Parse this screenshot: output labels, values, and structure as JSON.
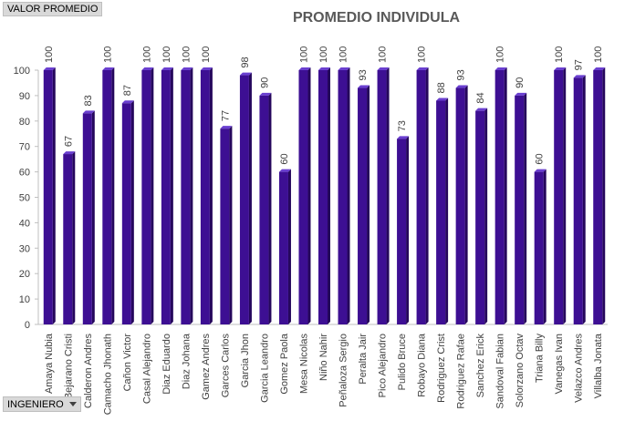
{
  "pivot": {
    "value_field": "VALOR PROMEDIO",
    "filter_field": "INGENIERO"
  },
  "colors": {
    "bar_front": "#3d0f93",
    "bar_side": "#25075c",
    "bar_top": "#6a3fd0",
    "axis": "#bfbfbf",
    "text": "#404040"
  },
  "chart_data": {
    "type": "bar",
    "title": "PROMEDIO INDIVIDULA",
    "xlabel": "",
    "ylabel": "",
    "ylim": [
      0,
      100
    ],
    "yticks": [
      0,
      10,
      20,
      30,
      40,
      50,
      60,
      70,
      80,
      90,
      100
    ],
    "grid": false,
    "legend": "none",
    "categories": [
      "Amaya Nubia",
      "Bejarano Cristi",
      "Calderon Andres",
      "Camacho Jhonath",
      "Cañon Victor",
      "Casal Alejandro",
      "Diaz Eduardo",
      "Diaz Johana",
      "Gamez Andres",
      "Garces Carlos",
      "Garcia Jhon",
      "Garcia Leandro",
      "Gomez Paola",
      "Mesa Nicolas",
      "Niño Nahir",
      "Peñaloza Sergio",
      "Peralta Jair",
      "Pico Alejandro",
      "Pulido Bruce",
      "Robayo Diana",
      "Rodriguez Crist",
      "Rodriguez Rafae",
      "Sanchez Erick",
      "Sandoval Fabian",
      "Solorzano Octav",
      "Triana Billy",
      "Vanegas Ivan",
      "Velazco Andres",
      "Villalba Jonata"
    ],
    "values": [
      100,
      67,
      83,
      100,
      87,
      100,
      100,
      100,
      100,
      77,
      98,
      90,
      60,
      100,
      100,
      100,
      93,
      100,
      73,
      100,
      88,
      93,
      84,
      100,
      90,
      60,
      100,
      97,
      100
    ]
  }
}
